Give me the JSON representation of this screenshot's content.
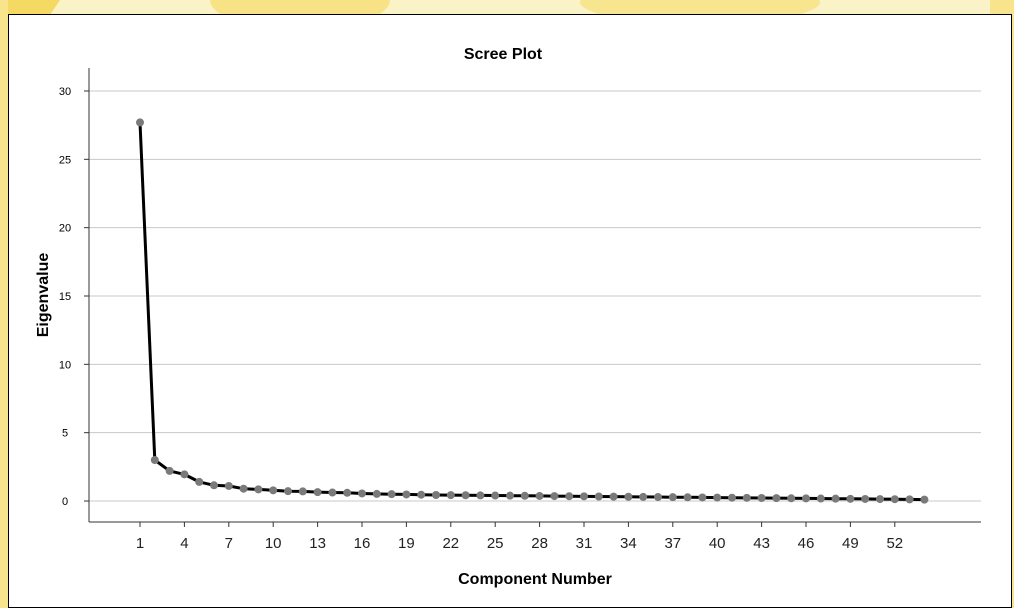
{
  "chart_data": {
    "type": "line",
    "title": "Scree Plot",
    "xlabel": "Component Number",
    "ylabel": "Eigenvalue",
    "xlim": [
      0,
      57
    ],
    "ylim": [
      -2,
      31.5
    ],
    "yticks": [
      0,
      5,
      10,
      15,
      20,
      25,
      30
    ],
    "xticks": [
      1,
      4,
      7,
      10,
      13,
      16,
      19,
      22,
      25,
      28,
      31,
      34,
      37,
      40,
      43,
      46,
      49,
      52
    ],
    "grid": "horizontal",
    "marker_color": "#7a7a7a",
    "line_color": "#000000",
    "x": [
      1,
      2,
      3,
      4,
      5,
      6,
      7,
      8,
      9,
      10,
      11,
      12,
      13,
      14,
      15,
      16,
      17,
      18,
      19,
      20,
      21,
      22,
      23,
      24,
      25,
      26,
      27,
      28,
      29,
      30,
      31,
      32,
      33,
      34,
      35,
      36,
      37,
      38,
      39,
      40,
      41,
      42,
      43,
      44,
      45,
      46,
      47,
      48,
      49,
      50,
      51,
      52,
      53,
      54
    ],
    "values": [
      27.7,
      3.0,
      2.2,
      1.95,
      1.4,
      1.15,
      1.1,
      0.9,
      0.85,
      0.78,
      0.72,
      0.7,
      0.65,
      0.62,
      0.6,
      0.55,
      0.52,
      0.5,
      0.48,
      0.46,
      0.44,
      0.43,
      0.42,
      0.41,
      0.4,
      0.39,
      0.38,
      0.37,
      0.36,
      0.35,
      0.34,
      0.33,
      0.32,
      0.31,
      0.3,
      0.29,
      0.28,
      0.27,
      0.26,
      0.25,
      0.24,
      0.23,
      0.22,
      0.21,
      0.2,
      0.19,
      0.18,
      0.17,
      0.16,
      0.15,
      0.14,
      0.13,
      0.12,
      0.1
    ]
  },
  "watermark_colors": {
    "primary": "#f2d24a",
    "light": "#f8e48c"
  }
}
